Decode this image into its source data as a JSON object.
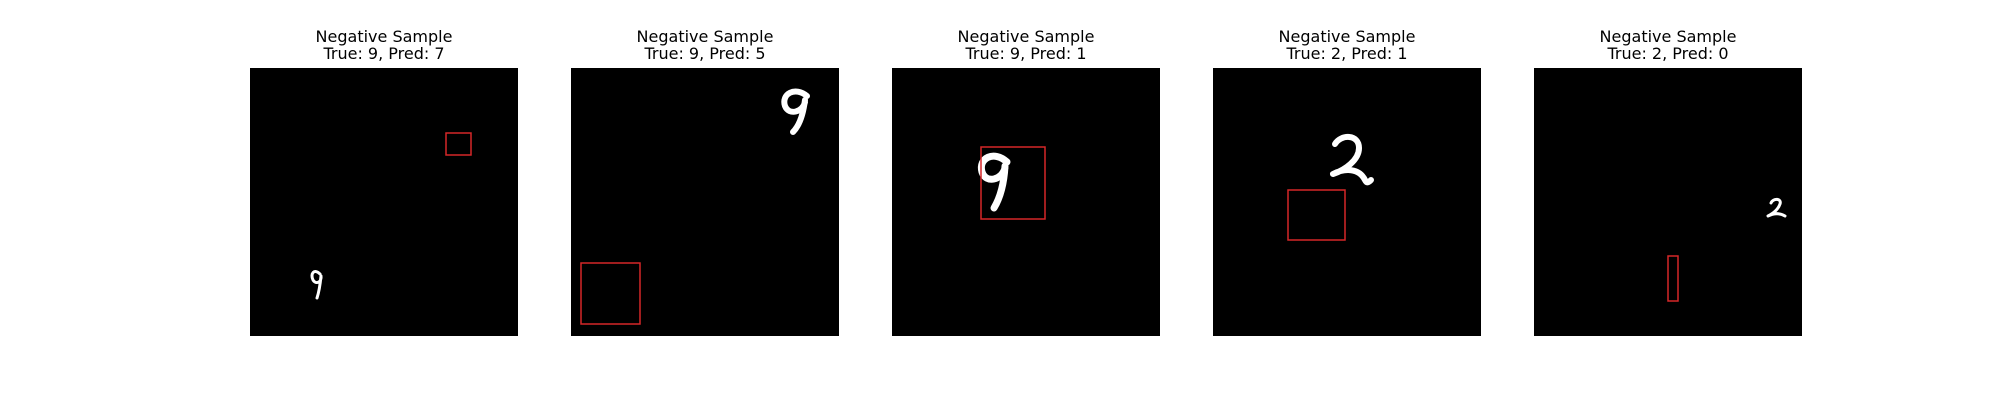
{
  "panels": [
    {
      "title": "Negative Sample",
      "subtitle": "True: 9, Pred: 7",
      "true_label": 9,
      "pred_label": 7
    },
    {
      "title": "Negative Sample",
      "subtitle": "True: 9, Pred: 5",
      "true_label": 9,
      "pred_label": 5
    },
    {
      "title": "Negative Sample",
      "subtitle": "True: 9, Pred: 1",
      "true_label": 9,
      "pred_label": 1
    },
    {
      "title": "Negative Sample",
      "subtitle": "True: 2, Pred: 1",
      "true_label": 2,
      "pred_label": 1
    },
    {
      "title": "Negative Sample",
      "subtitle": "True: 2, Pred: 0",
      "true_label": 2,
      "pred_label": 0
    }
  ],
  "colors": {
    "background": "#000000",
    "digit": "#ffffff",
    "box": "#d62728"
  }
}
